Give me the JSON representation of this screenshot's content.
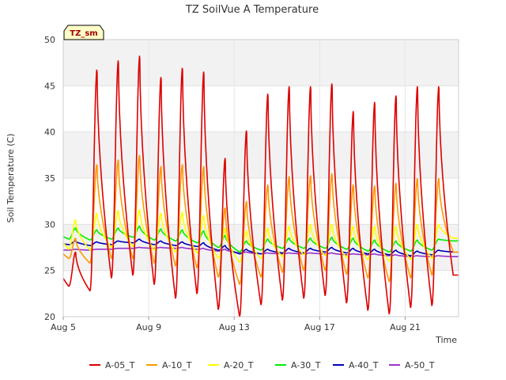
{
  "chart_data": {
    "type": "line",
    "title": "TZ SoilVue A Temperature",
    "xlabel": "Time",
    "ylabel": "Soil Temperature (C)",
    "badge": "TZ_sm",
    "ylim": [
      20,
      50
    ],
    "yticks": [
      20,
      25,
      30,
      35,
      40,
      45,
      50
    ],
    "xlim": [
      "2021-08-05T00:00",
      "2021-08-23T12:00"
    ],
    "xticks": [
      {
        "date": "2021-08-05",
        "label": "Aug 5"
      },
      {
        "date": "2021-08-09",
        "label": "Aug 9"
      },
      {
        "date": "2021-08-13",
        "label": "Aug 13"
      },
      {
        "date": "2021-08-17",
        "label": "Aug 17"
      },
      {
        "date": "2021-08-21",
        "label": "Aug 21"
      }
    ],
    "grid": true,
    "legend_position": "bottom",
    "series_style": "diurnal cycle, one peak per day at about 14:00",
    "series": [
      {
        "name": "A-05_T",
        "color": "#dd0000",
        "daily_dates": [
          "2021-08-05",
          "2021-08-06",
          "2021-08-07",
          "2021-08-08",
          "2021-08-09",
          "2021-08-10",
          "2021-08-11",
          "2021-08-12",
          "2021-08-13",
          "2021-08-14",
          "2021-08-15",
          "2021-08-16",
          "2021-08-17",
          "2021-08-18",
          "2021-08-19",
          "2021-08-20",
          "2021-08-21",
          "2021-08-22",
          "2021-08-23"
        ],
        "daily_max": [
          27.0,
          46.8,
          47.8,
          48.3,
          46.0,
          47.0,
          46.6,
          37.2,
          40.2,
          44.2,
          45.0,
          45.0,
          45.3,
          42.3,
          43.3,
          44.0,
          45.0,
          45.0,
          24.5
        ],
        "daily_min": [
          23.3,
          22.8,
          24.2,
          24.5,
          23.5,
          22.0,
          22.5,
          20.8,
          20.0,
          21.3,
          21.8,
          22.0,
          22.3,
          21.5,
          20.7,
          20.3,
          21.0,
          21.2,
          24.5
        ]
      },
      {
        "name": "A-10_T",
        "color": "#ff9900",
        "daily_dates": [
          "2021-08-05",
          "2021-08-06",
          "2021-08-07",
          "2021-08-08",
          "2021-08-09",
          "2021-08-10",
          "2021-08-11",
          "2021-08-12",
          "2021-08-13",
          "2021-08-14",
          "2021-08-15",
          "2021-08-16",
          "2021-08-17",
          "2021-08-18",
          "2021-08-19",
          "2021-08-20",
          "2021-08-21",
          "2021-08-22",
          "2021-08-23"
        ],
        "daily_max": [
          28.5,
          36.5,
          37.0,
          37.5,
          36.3,
          36.5,
          36.3,
          31.8,
          32.5,
          34.3,
          35.2,
          35.3,
          35.5,
          34.3,
          34.2,
          34.5,
          35.0,
          35.0,
          27.0
        ],
        "daily_min": [
          26.3,
          25.8,
          26.3,
          26.3,
          25.8,
          25.5,
          25.3,
          24.3,
          23.5,
          24.3,
          24.8,
          25.0,
          25.0,
          24.6,
          24.2,
          23.8,
          24.2,
          24.5,
          27.0
        ]
      },
      {
        "name": "A-20_T",
        "color": "#ffff00",
        "daily_dates": [
          "2021-08-05",
          "2021-08-06",
          "2021-08-07",
          "2021-08-08",
          "2021-08-09",
          "2021-08-10",
          "2021-08-11",
          "2021-08-12",
          "2021-08-13",
          "2021-08-14",
          "2021-08-15",
          "2021-08-16",
          "2021-08-17",
          "2021-08-18",
          "2021-08-19",
          "2021-08-20",
          "2021-08-21",
          "2021-08-22",
          "2021-08-23"
        ],
        "daily_max": [
          30.5,
          31.2,
          31.5,
          31.6,
          31.2,
          31.3,
          31.0,
          29.6,
          29.3,
          29.6,
          29.8,
          30.0,
          30.0,
          29.8,
          29.8,
          29.8,
          30.0,
          30.0,
          28.5
        ],
        "daily_min": [
          27.3,
          27.2,
          27.5,
          27.6,
          27.2,
          27.0,
          26.9,
          26.3,
          25.9,
          26.3,
          26.5,
          26.7,
          26.6,
          26.4,
          26.2,
          26.0,
          26.2,
          26.3,
          28.5
        ]
      },
      {
        "name": "A-30_T",
        "color": "#00ee00",
        "daily_dates": [
          "2021-08-05",
          "2021-08-06",
          "2021-08-07",
          "2021-08-08",
          "2021-08-09",
          "2021-08-10",
          "2021-08-11",
          "2021-08-12",
          "2021-08-13",
          "2021-08-14",
          "2021-08-15",
          "2021-08-16",
          "2021-08-17",
          "2021-08-18",
          "2021-08-19",
          "2021-08-20",
          "2021-08-21",
          "2021-08-22",
          "2021-08-23"
        ],
        "daily_max": [
          29.6,
          29.4,
          29.6,
          29.8,
          29.5,
          29.4,
          29.3,
          28.8,
          28.2,
          28.4,
          28.5,
          28.5,
          28.6,
          28.5,
          28.3,
          28.2,
          28.3,
          28.4,
          28.2
        ],
        "daily_min": [
          28.4,
          28.3,
          28.4,
          28.6,
          28.3,
          28.2,
          28.0,
          27.5,
          27.0,
          27.2,
          27.4,
          27.4,
          27.4,
          27.3,
          27.1,
          27.0,
          27.1,
          27.2,
          28.2
        ]
      },
      {
        "name": "A-40_T",
        "color": "#0000bb",
        "daily_dates": [
          "2021-08-05",
          "2021-08-06",
          "2021-08-07",
          "2021-08-08",
          "2021-08-09",
          "2021-08-10",
          "2021-08-11",
          "2021-08-12",
          "2021-08-13",
          "2021-08-14",
          "2021-08-15",
          "2021-08-16",
          "2021-08-17",
          "2021-08-18",
          "2021-08-19",
          "2021-08-20",
          "2021-08-21",
          "2021-08-22",
          "2021-08-23"
        ],
        "daily_max": [
          28.2,
          28.1,
          28.2,
          28.4,
          28.2,
          28.1,
          28.0,
          27.7,
          27.3,
          27.3,
          27.4,
          27.4,
          27.5,
          27.4,
          27.3,
          27.2,
          27.1,
          27.2,
          27.0
        ],
        "daily_min": [
          27.8,
          27.7,
          27.8,
          28.0,
          27.8,
          27.7,
          27.6,
          27.2,
          26.8,
          26.8,
          26.9,
          26.9,
          27.0,
          26.9,
          26.8,
          26.7,
          26.6,
          26.7,
          27.0
        ]
      },
      {
        "name": "A-50_T",
        "color": "#9933cc",
        "daily_dates": [
          "2021-08-05",
          "2021-08-06",
          "2021-08-07",
          "2021-08-08",
          "2021-08-09",
          "2021-08-10",
          "2021-08-11",
          "2021-08-12",
          "2021-08-13",
          "2021-08-14",
          "2021-08-15",
          "2021-08-16",
          "2021-08-17",
          "2021-08-18",
          "2021-08-19",
          "2021-08-20",
          "2021-08-21",
          "2021-08-22",
          "2021-08-23"
        ],
        "daily_max": [
          27.3,
          27.3,
          27.4,
          27.5,
          27.5,
          27.5,
          27.4,
          27.3,
          27.0,
          26.9,
          26.9,
          26.9,
          26.9,
          26.8,
          26.8,
          26.7,
          26.6,
          26.6,
          26.5
        ],
        "daily_min": [
          27.2,
          27.2,
          27.3,
          27.4,
          27.4,
          27.4,
          27.3,
          27.1,
          26.9,
          26.8,
          26.8,
          26.8,
          26.8,
          26.7,
          26.7,
          26.6,
          26.5,
          26.5,
          26.5
        ]
      }
    ]
  }
}
